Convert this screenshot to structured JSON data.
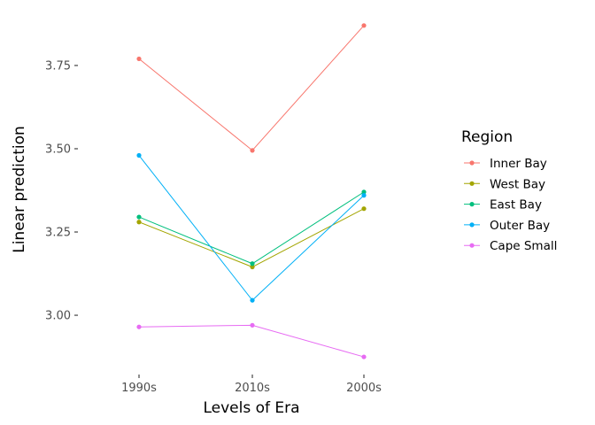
{
  "chart_data": {
    "type": "line",
    "xlabel": "Levels of Era",
    "ylabel": "Linear prediction",
    "categories": [
      "1990s",
      "2010s",
      "2000s"
    ],
    "ylim": [
      2.83,
      3.92
    ],
    "yticks": [
      3.0,
      3.25,
      3.5,
      3.75
    ],
    "ytick_labels": [
      "3.00",
      "3.25",
      "3.50",
      "3.75"
    ],
    "grid": false,
    "legend": {
      "title": "Region",
      "position": "right"
    },
    "series": [
      {
        "name": "Inner Bay",
        "color": "#F8766D",
        "values": [
          3.77,
          3.495,
          3.87
        ]
      },
      {
        "name": "West Bay",
        "color": "#A3A500",
        "values": [
          3.28,
          3.145,
          3.32
        ]
      },
      {
        "name": "East Bay",
        "color": "#00BF7D",
        "values": [
          3.295,
          3.155,
          3.37
        ]
      },
      {
        "name": "Outer Bay",
        "color": "#00B0F6",
        "values": [
          3.48,
          3.045,
          3.36
        ]
      },
      {
        "name": "Cape Small",
        "color": "#E76BF3",
        "values": [
          2.965,
          2.97,
          2.875
        ]
      }
    ]
  }
}
